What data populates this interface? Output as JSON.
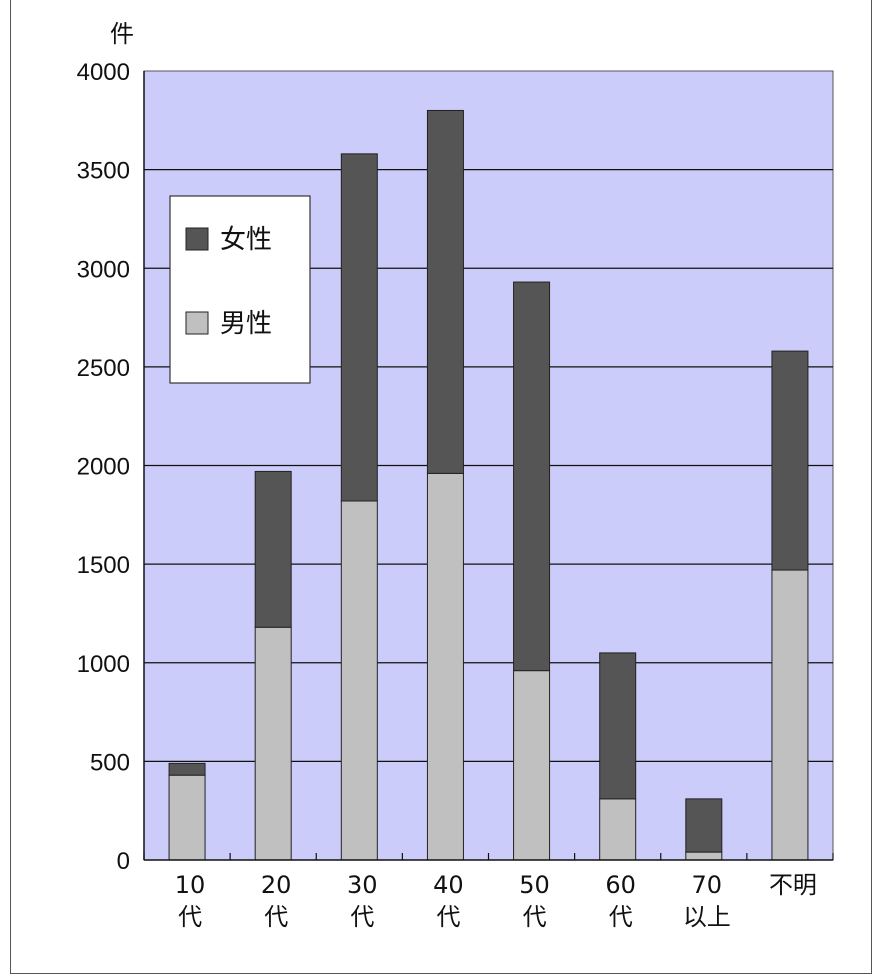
{
  "chart_data": {
    "type": "bar",
    "stacked": true,
    "unit_label": "件",
    "categories": [
      [
        "10",
        "代"
      ],
      [
        "20",
        "代"
      ],
      [
        "30",
        "代"
      ],
      [
        "40",
        "代"
      ],
      [
        "50",
        "代"
      ],
      [
        "60",
        "代"
      ],
      [
        "70",
        "以上"
      ],
      [
        "不明"
      ]
    ],
    "series": [
      {
        "name": "男性",
        "color": "#c0c0c0",
        "values": [
          430,
          1180,
          1820,
          1960,
          960,
          310,
          40,
          1470
        ]
      },
      {
        "name": "女性",
        "color": "#555555",
        "values": [
          60,
          790,
          1760,
          1840,
          1970,
          740,
          270,
          1110
        ]
      }
    ],
    "ylim": [
      0,
      4000
    ],
    "yticks": [
      0,
      500,
      1000,
      1500,
      2000,
      2500,
      3000,
      3500,
      4000
    ],
    "grid": true,
    "legend": {
      "position": "top-left",
      "order": [
        "女性",
        "男性"
      ]
    },
    "plot_background": "#ccccfa"
  }
}
